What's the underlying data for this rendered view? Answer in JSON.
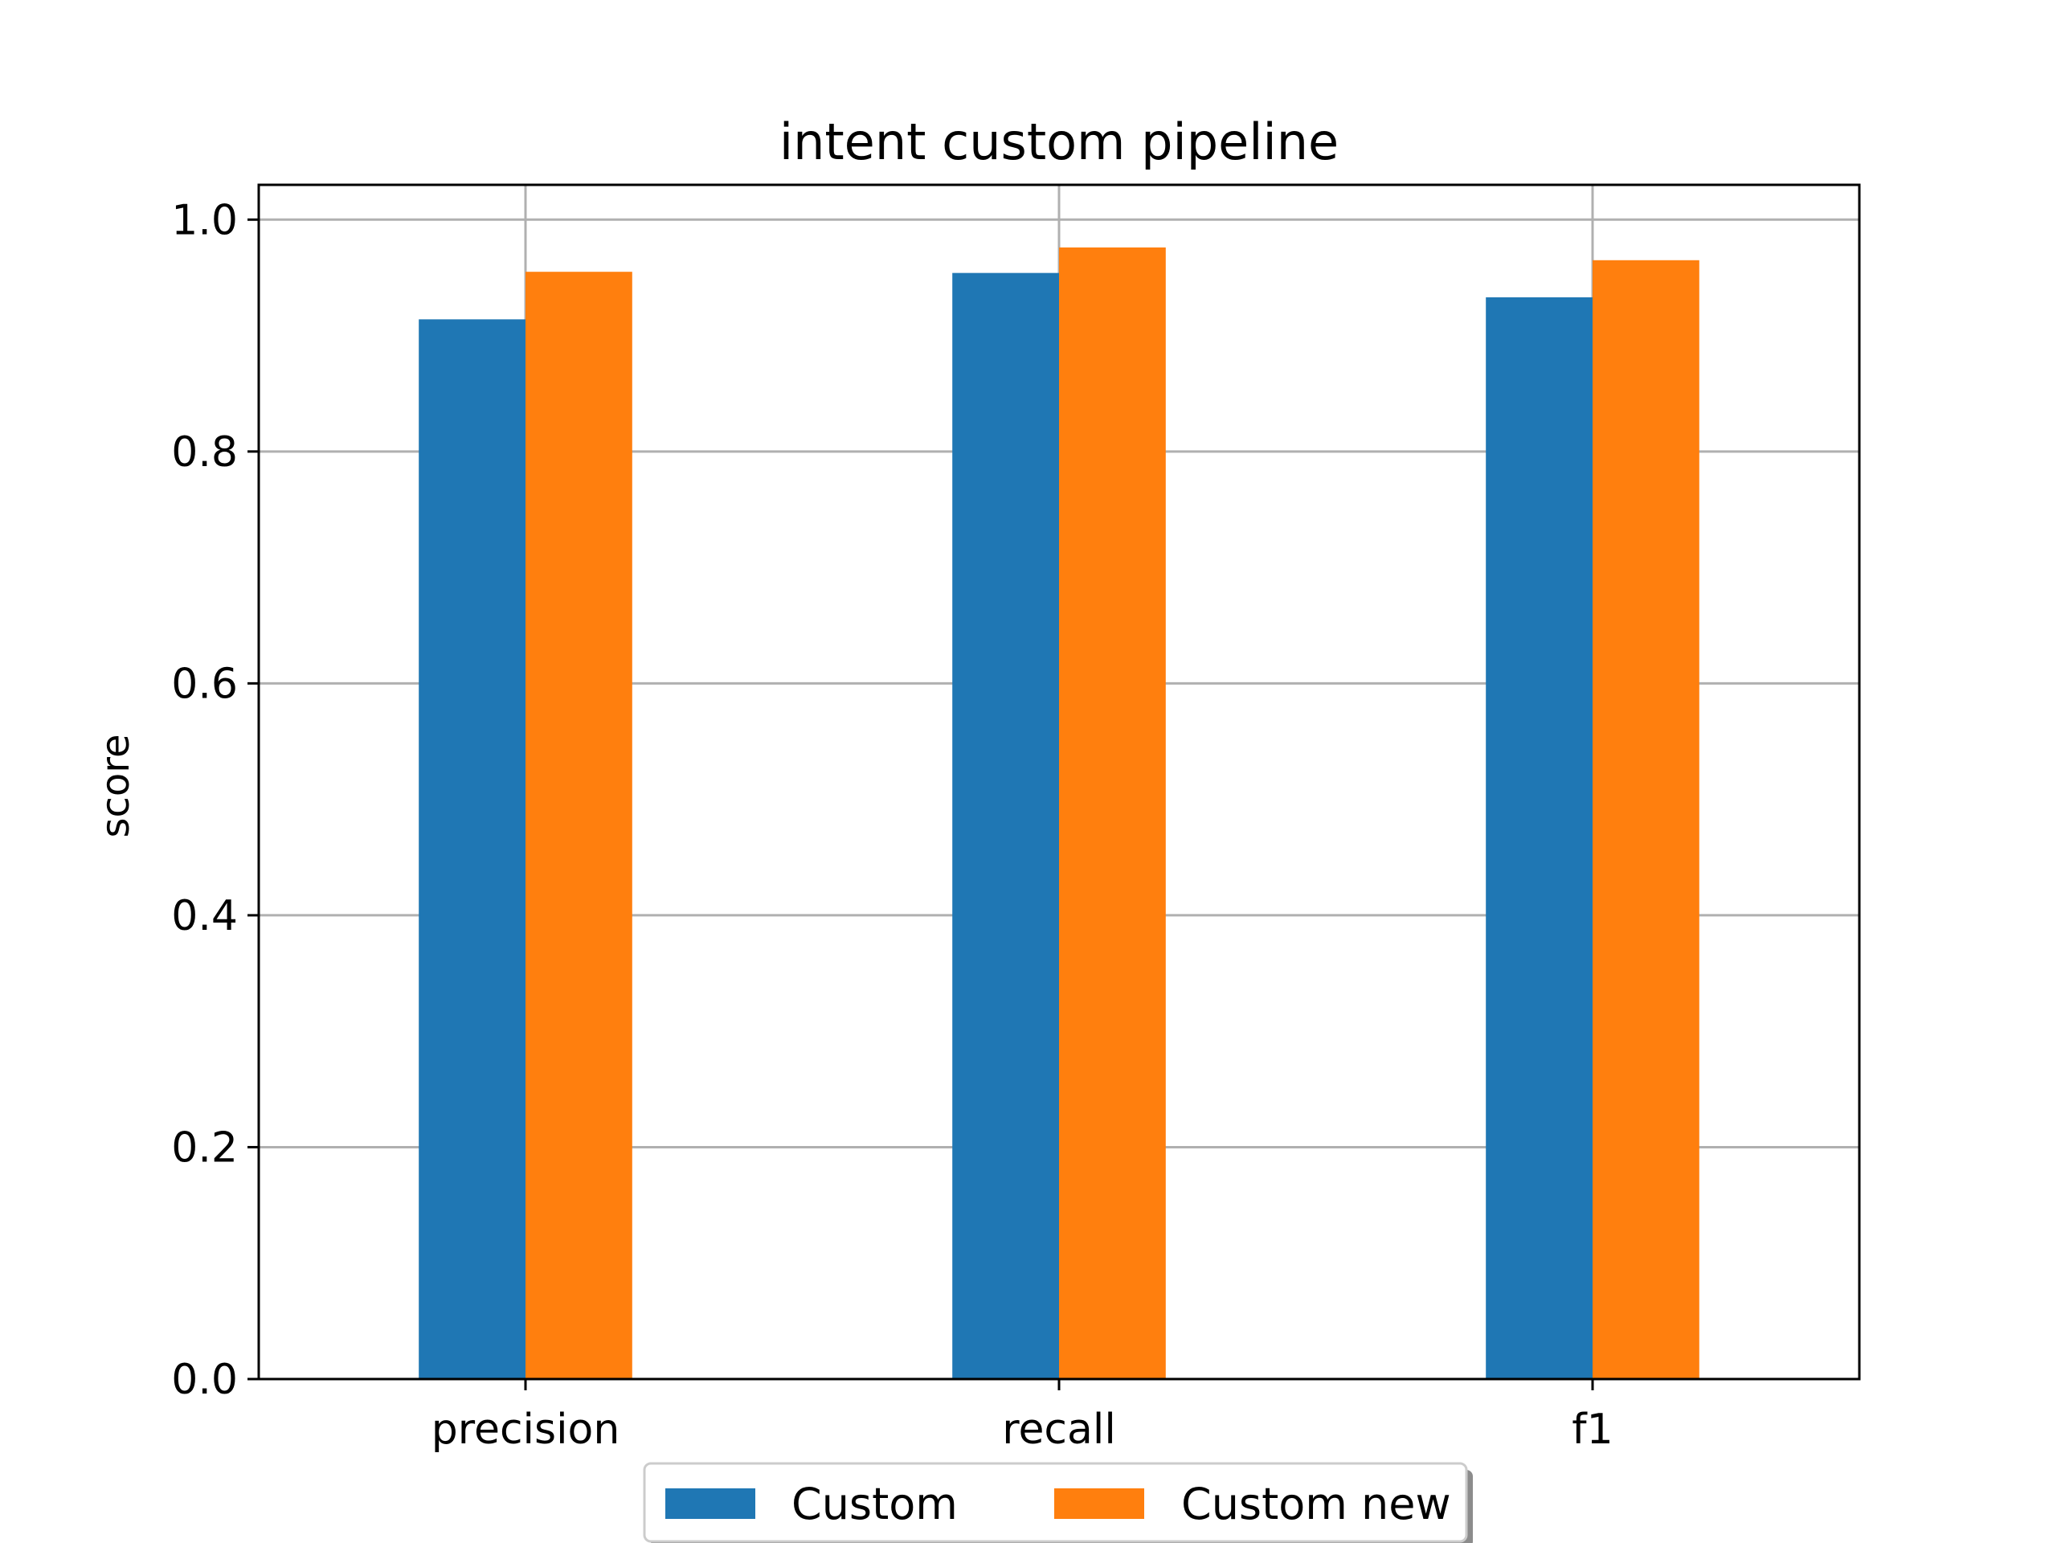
{
  "chart_data": {
    "type": "bar",
    "title": "intent custom pipeline",
    "xlabel": "",
    "ylabel": "score",
    "categories": [
      "precision",
      "recall",
      "f1"
    ],
    "series": [
      {
        "name": "Custom",
        "color": "#1f77b4",
        "values": [
          0.914,
          0.954,
          0.933
        ]
      },
      {
        "name": "Custom new",
        "color": "#ff7f0e",
        "values": [
          0.955,
          0.976,
          0.965
        ]
      }
    ],
    "ylim": [
      0,
      1.03
    ],
    "yticks": [
      "0.0",
      "0.2",
      "0.4",
      "0.6",
      "0.8",
      "1.0"
    ],
    "grid": true,
    "legend_position": "bottom-center"
  }
}
